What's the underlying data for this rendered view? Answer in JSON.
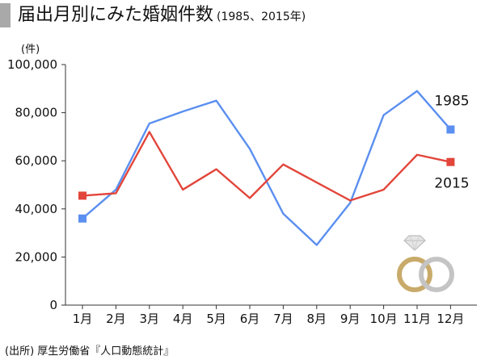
{
  "title": "届出月別にみた婚姻件数",
  "subtitle": "(1985、2015年)",
  "source": "(出所) 厚生労働省『人口動態統計』",
  "chart_data": {
    "type": "line",
    "ylabel": "(件)",
    "ylim": [
      0,
      100000
    ],
    "yticks": [
      "100,000",
      "80,000",
      "60,000",
      "40,000",
      "20,000",
      "0"
    ],
    "categories": [
      "1月",
      "2月",
      "3月",
      "4月",
      "5月",
      "6月",
      "7月",
      "8月",
      "9月",
      "10月",
      "11月",
      "12月"
    ],
    "series": [
      {
        "name": "1985",
        "color": "#5b8ff0",
        "values": [
          36000,
          48000,
          75500,
          80500,
          85000,
          65000,
          38000,
          25000,
          42500,
          79000,
          89000,
          73000
        ]
      },
      {
        "name": "2015",
        "color": "#e2453a",
        "values": [
          45500,
          46500,
          72000,
          48000,
          56500,
          44500,
          58500,
          51000,
          43500,
          48000,
          62500,
          59500
        ]
      }
    ],
    "grid": false,
    "legend": "inline-right"
  }
}
